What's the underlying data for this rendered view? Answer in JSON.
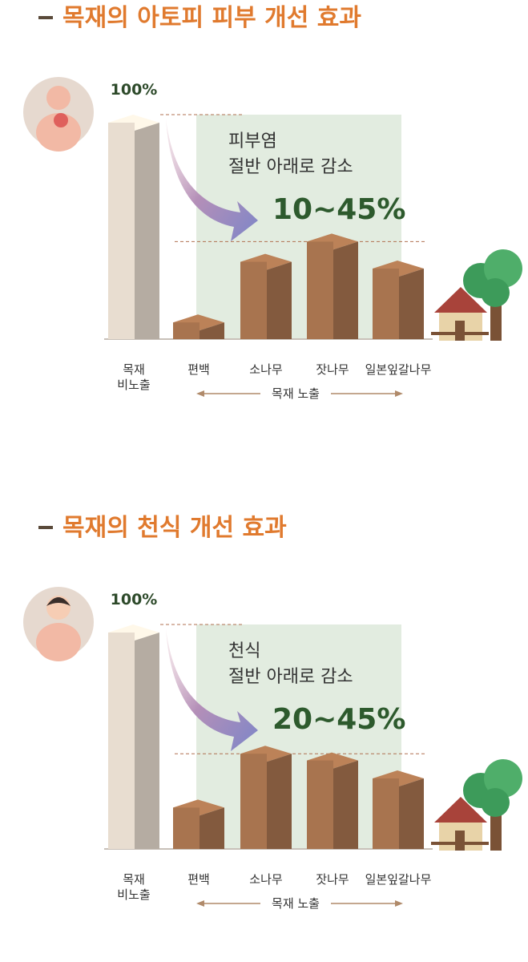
{
  "chart_data": [
    {
      "type": "bar3d",
      "title": "목재의 아토피 피부 개선 효과",
      "categories": [
        "목재\n비노출",
        "편백",
        "소나무",
        "잣나무",
        "일본잎갈나무"
      ],
      "values": [
        100,
        11,
        38,
        47,
        35
      ],
      "value_labels": [
        "100%",
        null,
        null,
        null,
        null
      ],
      "group_label": "목재 노출",
      "annotation": [
        "피부염",
        "절반 아래로 감소",
        "10~45%"
      ],
      "colors": [
        "#e8ddd0",
        "#a8744f"
      ]
    },
    {
      "type": "bar3d",
      "title": "목재의 천식 개선 효과",
      "categories": [
        "목재\n비노출",
        "편백",
        "소나무",
        "잣나무",
        "일본잎갈나무"
      ],
      "values": [
        100,
        22,
        46,
        43,
        35
      ],
      "value_labels": [
        "100%",
        null,
        null,
        null,
        null
      ],
      "group_label": "목재 노출",
      "annotation": [
        "천식",
        "절반 아래로 감소",
        "20~45%"
      ],
      "colors": [
        "#e8ddd0",
        "#a8744f"
      ]
    }
  ]
}
